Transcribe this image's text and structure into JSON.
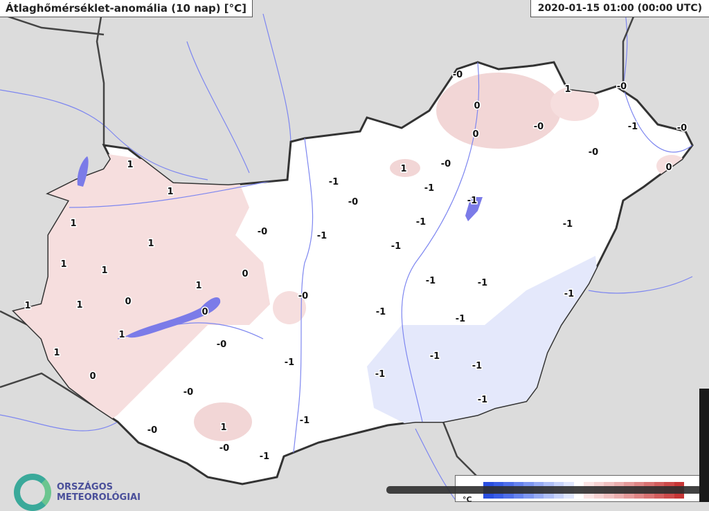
{
  "title": "Átlaghőmérséklet-anomália (10 nap) [°C]",
  "timestamp": "2020-01-15 01:00 (00:00 UTC)",
  "logo": {
    "line1": "ORSZÁGOS",
    "line2": "METEOROLÓGIAI"
  },
  "legend": {
    "unit": "°C",
    "colors": [
      "#2a4fe0",
      "#3a5ee6",
      "#4f6fea",
      "#6683ee",
      "#7e97f1",
      "#97abf4",
      "#afbff7",
      "#c7d3fa",
      "#dfe6fd",
      "#ffffff",
      "#fbe4e4",
      "#f6d2d2",
      "#f0c0c0",
      "#ebaeae",
      "#e59a9a",
      "#df8686",
      "#d97272",
      "#d35e5e",
      "#cd4a4a",
      "#c73636"
    ]
  },
  "colors": {
    "positive_anomaly": "#f6dede",
    "negative_anomaly": "#e4e8fb",
    "water": "#7b7be8",
    "border": "#333333",
    "rivers": "#7d86f0"
  },
  "station_values": [
    "1",
    "1",
    "1",
    "1",
    "1",
    "1",
    "0",
    "1",
    "0",
    "0",
    "1",
    "1",
    "1",
    "1",
    "0",
    "-0",
    "-0",
    "-0",
    "1",
    "-0",
    "-1",
    "-1",
    "-1",
    "-0",
    "-0",
    "-1",
    "-1",
    "-0",
    "1",
    "-0",
    "-1",
    "-1",
    "-1",
    "-1",
    "-0",
    "0",
    "0",
    "1",
    "-0",
    "-0",
    "-1",
    "-0",
    "-0",
    "0",
    "-1",
    "-1",
    "-1",
    "-1",
    "-1",
    "-1",
    "-1",
    "-1",
    "-1",
    "-1"
  ]
}
